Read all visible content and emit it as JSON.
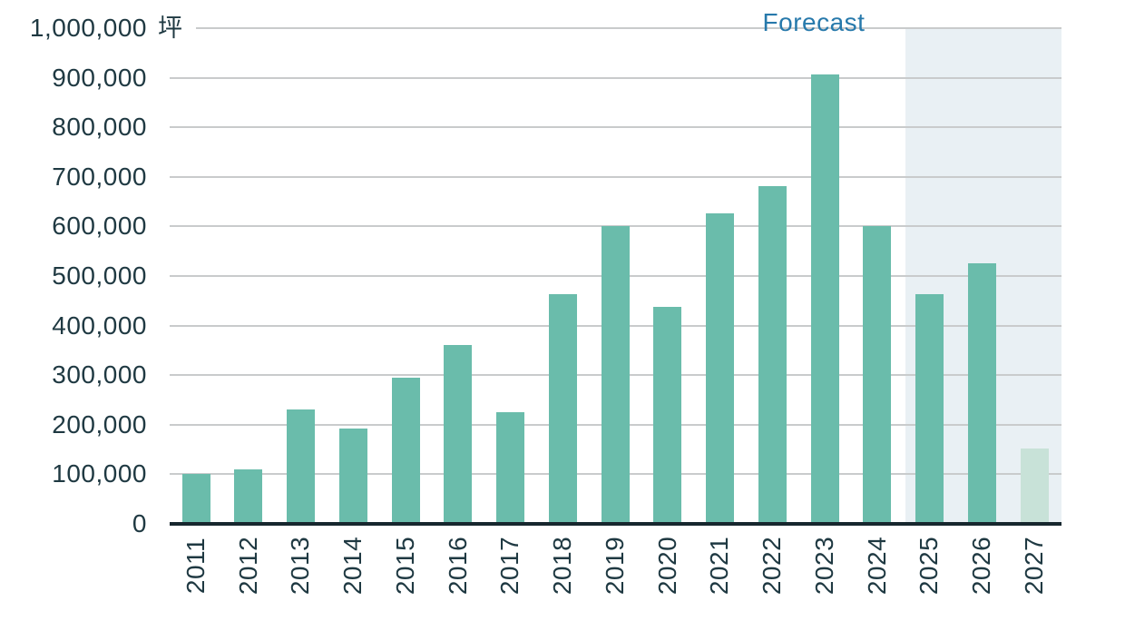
{
  "chart_data": {
    "type": "bar",
    "title": "",
    "unit": "坪",
    "categories": [
      "2011",
      "2012",
      "2013",
      "2014",
      "2015",
      "2016",
      "2017",
      "2018",
      "2019",
      "2020",
      "2021",
      "2022",
      "2023",
      "2024",
      "2025",
      "2026",
      "2027"
    ],
    "values": [
      100000,
      110000,
      231000,
      193000,
      295000,
      361000,
      225000,
      463000,
      600000,
      438000,
      626000,
      681000,
      906000,
      600000,
      464000,
      526000,
      152000
    ],
    "ylim": [
      0,
      1000000
    ],
    "y_ticks": [
      0,
      100000,
      200000,
      300000,
      400000,
      500000,
      600000,
      700000,
      800000,
      900000,
      1000000
    ],
    "y_tick_labels": [
      "0",
      "100,000",
      "200,000",
      "300,000",
      "400,000",
      "500,000",
      "600,000",
      "700,000",
      "800,000",
      "900,000",
      "1,000,000"
    ],
    "grid": "horizontal",
    "x_label_rotation": -90,
    "legend_position": "none",
    "forecast": {
      "label": "Forecast",
      "band_years": [
        "2025",
        "2026",
        "2027"
      ],
      "light_bar_year": "2027"
    },
    "colors": {
      "bar": "#6abcab",
      "bar_forecast_light": "#c8e2d8",
      "forecast_band": "#e9f0f4",
      "forecast_label": "#2779ab",
      "axis_text": "#1f3942",
      "gridline": "#c9cbcc",
      "baseline": "#17272e"
    }
  }
}
